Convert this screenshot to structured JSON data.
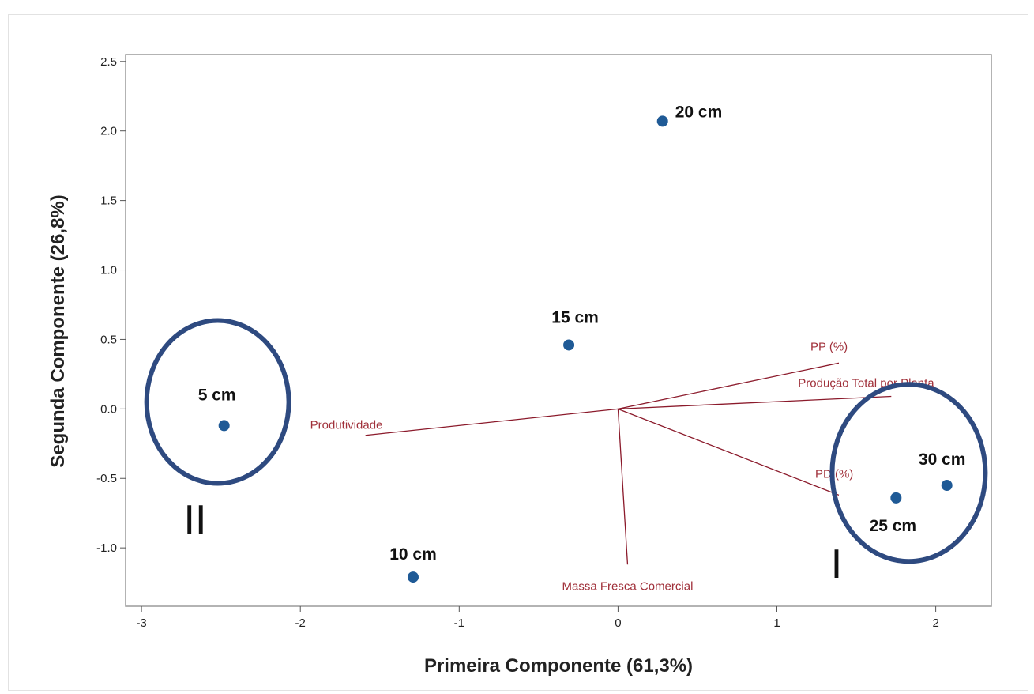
{
  "chart_data": {
    "type": "scatter",
    "title": "",
    "xlabel": "Primeira Componente (61,3%)",
    "ylabel": "Segunda Componente (26,8%)",
    "xlim": [
      -3.1,
      2.35
    ],
    "ylim": [
      -1.42,
      2.55
    ],
    "xticks": [
      -3,
      -2,
      -1,
      0,
      1,
      2
    ],
    "xtick_labels": [
      "-3",
      "-2",
      "-1",
      "0",
      "1",
      "2"
    ],
    "yticks": [
      -1.0,
      -0.5,
      0.0,
      0.5,
      1.0,
      1.5,
      2.0,
      2.5
    ],
    "ytick_labels": [
      "-1.0",
      "-0.5",
      "0.0",
      "0.5",
      "1.0",
      "1.5",
      "2.0",
      "2.5"
    ],
    "grid": false,
    "colors": {
      "points": "#1f5a96",
      "loadings": "#8b1a2b",
      "loading_labels": "#a0303a",
      "groups": "#2e4a80"
    },
    "points": [
      {
        "label": "5 cm",
        "x": -2.48,
        "y": -0.12
      },
      {
        "label": "10 cm",
        "x": -1.29,
        "y": -1.21
      },
      {
        "label": "15 cm",
        "x": -0.31,
        "y": 0.46
      },
      {
        "label": "20 cm",
        "x": 0.28,
        "y": 2.07
      },
      {
        "label": "25 cm",
        "x": 1.75,
        "y": -0.64
      },
      {
        "label": "30 cm",
        "x": 2.07,
        "y": -0.55
      }
    ],
    "loadings": [
      {
        "label": "PP (%)",
        "x": 1.39,
        "y": 0.33
      },
      {
        "label": "Produção Total por Planta",
        "x": 1.72,
        "y": 0.09
      },
      {
        "label": "Produtividade",
        "x": -1.59,
        "y": -0.19
      },
      {
        "label": "PD (%)",
        "x": 1.39,
        "y": -0.62
      },
      {
        "label": "Massa Fresca Comercial",
        "x": 0.06,
        "y": -1.12
      }
    ],
    "groups": [
      {
        "label": "II",
        "members": [
          "5 cm"
        ]
      },
      {
        "label": "I",
        "members": [
          "25 cm",
          "30 cm"
        ]
      }
    ]
  }
}
